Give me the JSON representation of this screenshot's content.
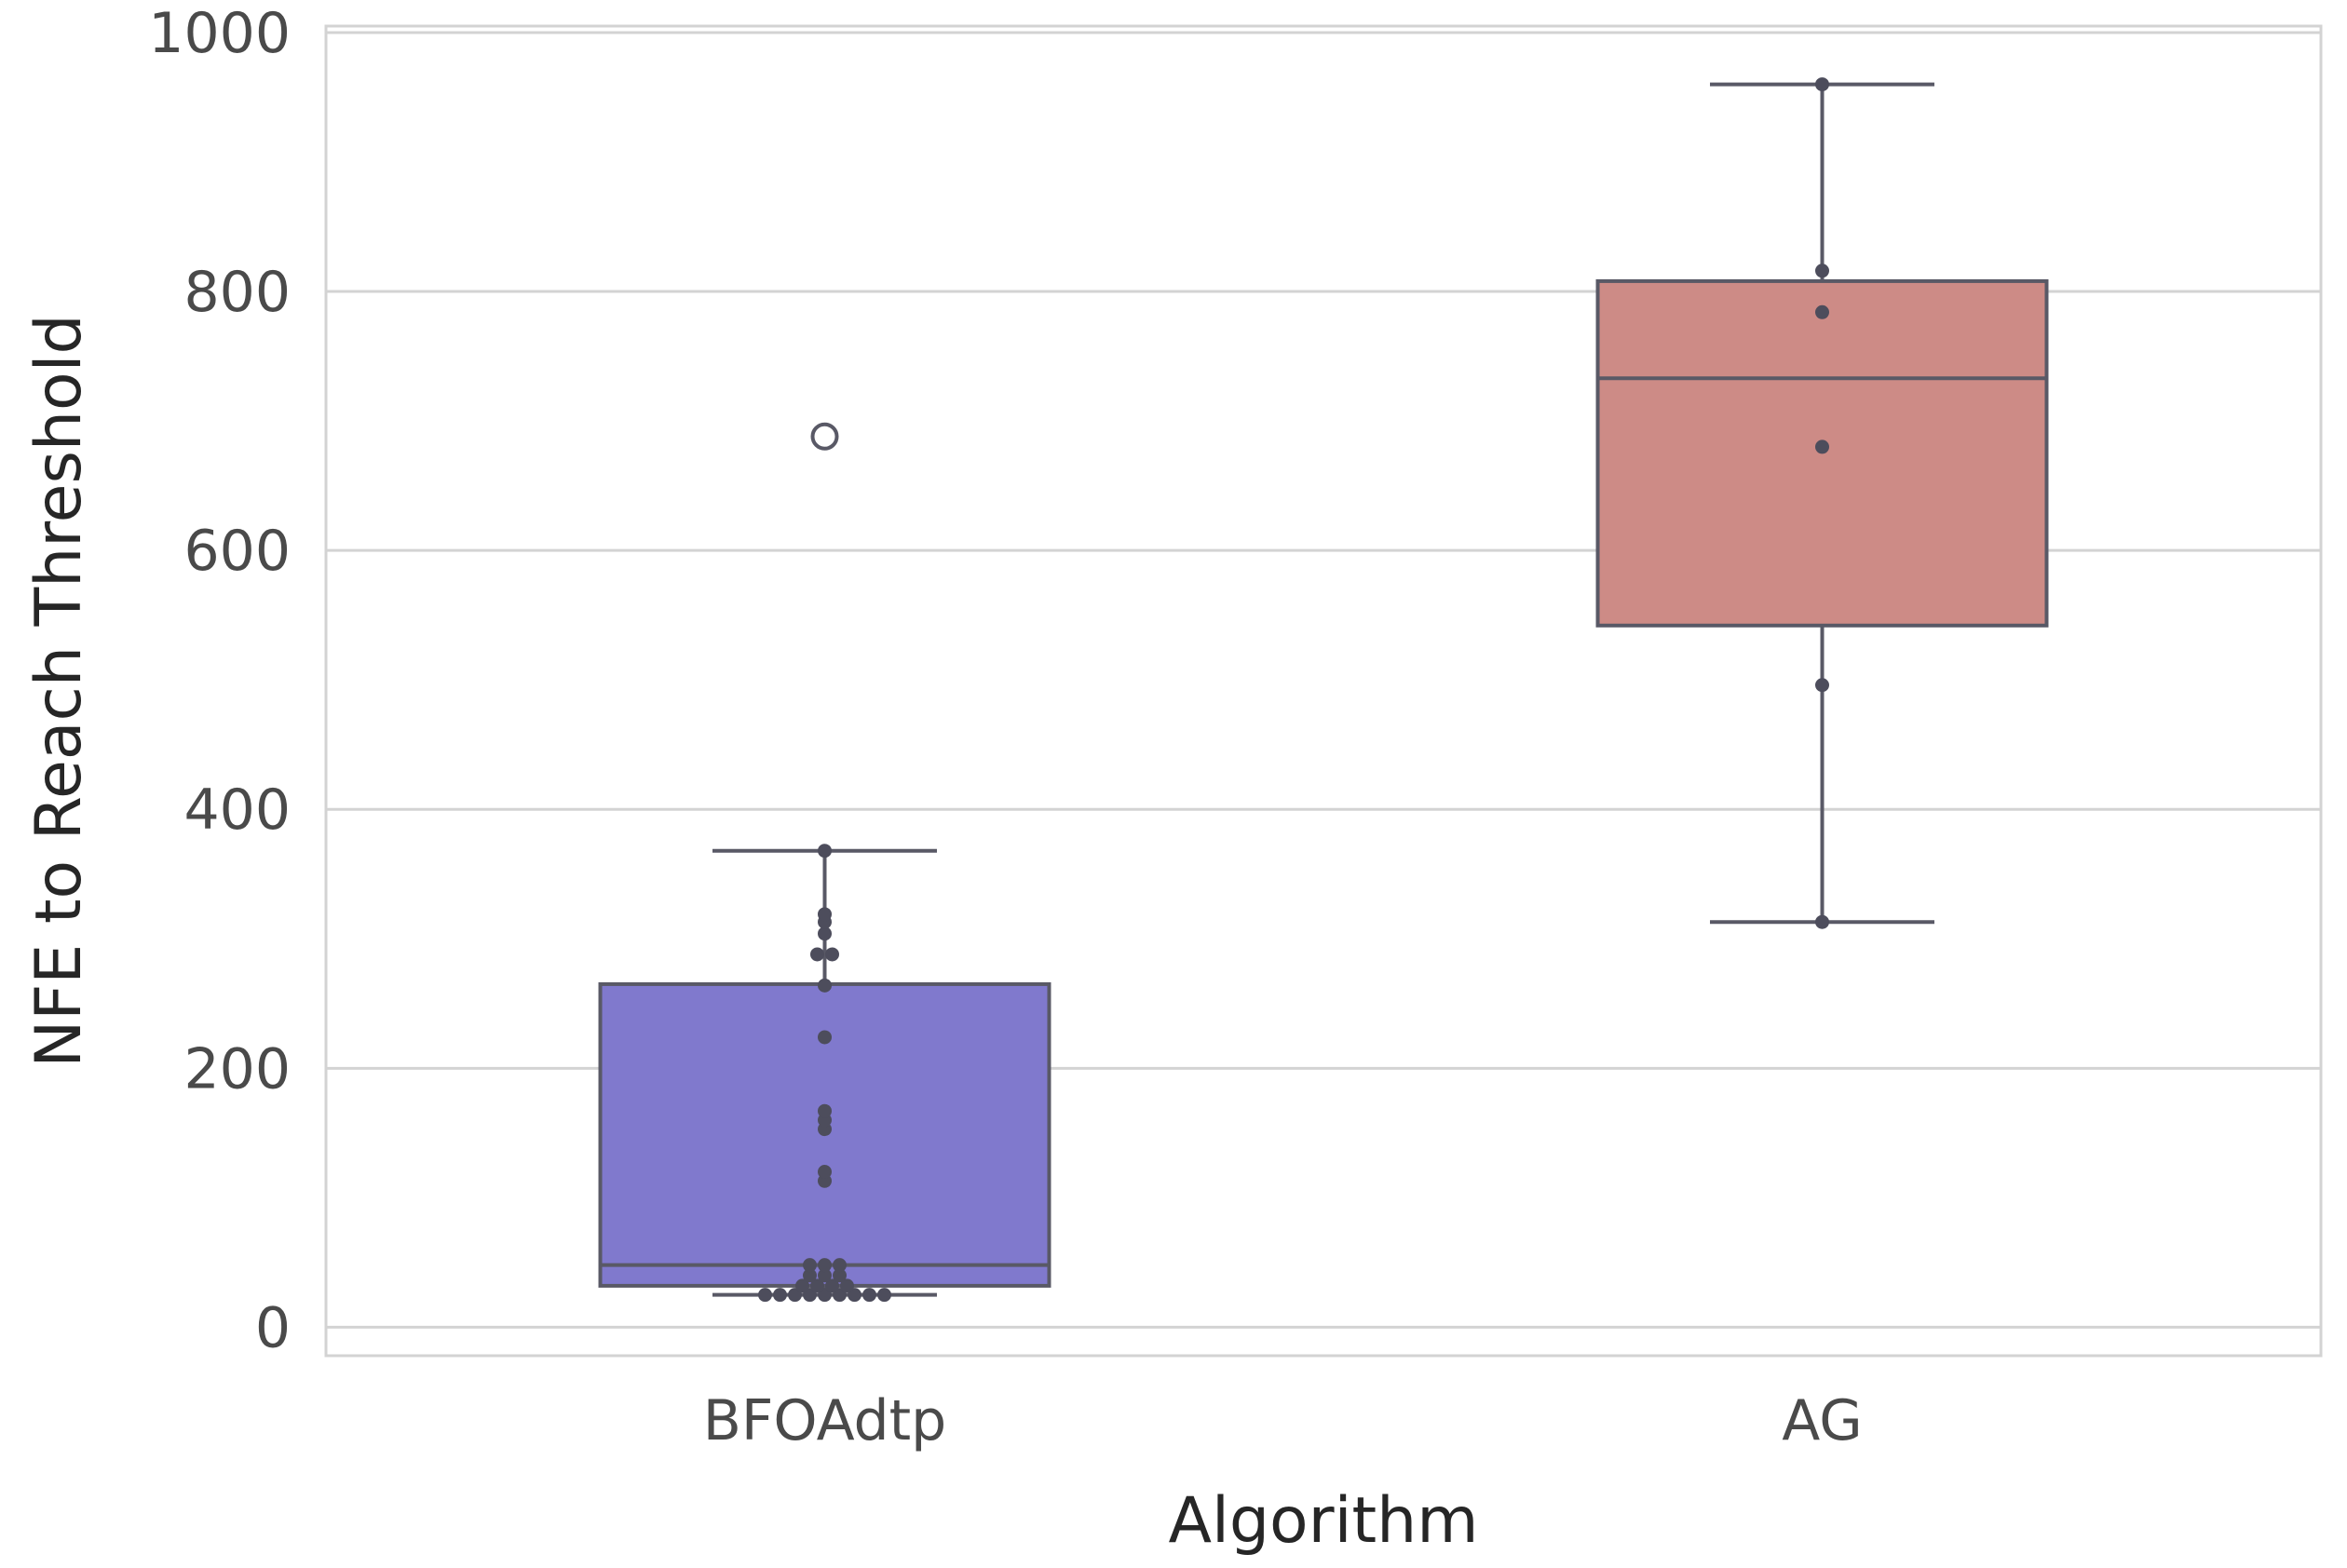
{
  "chart_data": {
    "type": "boxplot",
    "title": "",
    "xlabel": "Algorithm",
    "ylabel": "NFE to Reach Threshold",
    "ylim": [
      -22,
      1005
    ],
    "yticks": [
      0,
      200,
      400,
      600,
      800,
      1000
    ],
    "grid": true,
    "categories": [
      "BFOAdtp",
      "AG"
    ],
    "colors": {
      "BFOAdtp": "#8079cd",
      "AG": "#cd8b86",
      "points": "#4d4d5c",
      "edge": "#595966",
      "grid": "#d3d3d3"
    },
    "boxes": [
      {
        "name": "BFOAdtp",
        "whisker_low": 25,
        "q1": 32,
        "median": 48,
        "q3": 265,
        "whisker_high": 368,
        "outliers": [
          688
        ],
        "points": [
          25,
          25,
          25,
          25,
          25,
          25,
          25,
          25,
          25,
          32,
          32,
          32,
          32,
          40,
          40,
          40,
          48,
          48,
          48,
          113,
          120,
          153,
          160,
          167,
          224,
          264,
          288,
          288,
          304,
          313,
          319,
          368
        ]
      },
      {
        "name": "AG",
        "whisker_low": 313,
        "q1": 542,
        "median": 733,
        "q3": 808,
        "whisker_high": 960,
        "outliers": [],
        "points": [
          313,
          496,
          680,
          784,
          816,
          960
        ]
      }
    ]
  }
}
